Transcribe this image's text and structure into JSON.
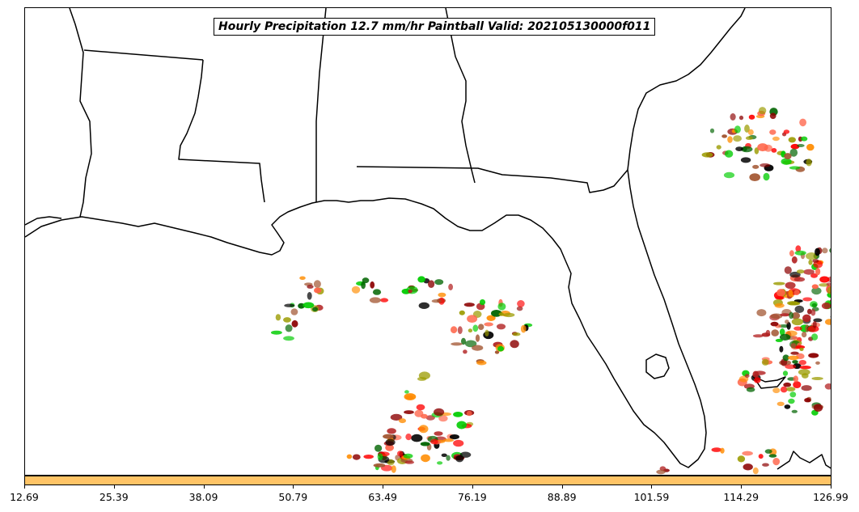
{
  "title": "Hourly Precipitation 12.7 mm/hr Paintball Valid: 202105130000f011",
  "colorbar": {
    "color": "#FFC466",
    "ticks": [
      "12.69",
      "25.39",
      "38.09",
      "50.79",
      "63.49",
      "76.19",
      "88.89",
      "101.59",
      "114.29",
      "126.99"
    ]
  },
  "member_colors": [
    "#ff0000",
    "#8b0000",
    "#000000",
    "#ff8c00",
    "#9b9b00",
    "#00cc00",
    "#006400",
    "#b22222",
    "#ff6347",
    "#a0522d"
  ]
}
